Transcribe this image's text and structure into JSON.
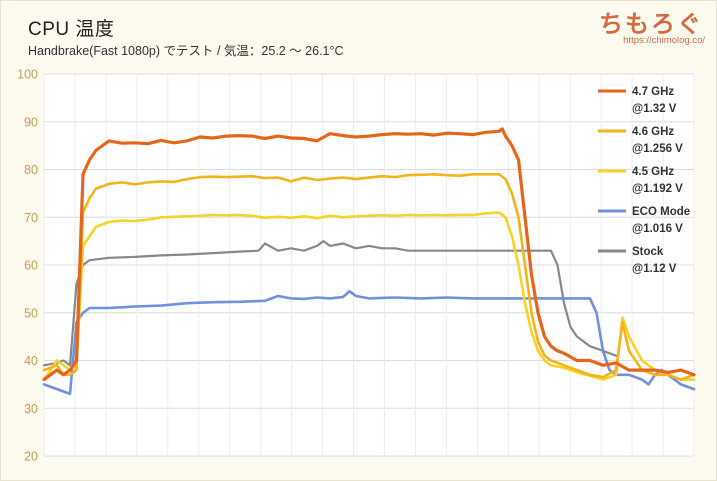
{
  "header": {
    "title": "CPU 温度",
    "subtitle": "Handbrake(Fast 1080p) でテスト  /  気温：25.2 〜 26.1°C",
    "brand": "ちもろぐ",
    "url": "https://chimolog.co/"
  },
  "chart_data": {
    "type": "line",
    "title": "CPU 温度",
    "subtitle": "Handbrake(Fast 1080p) でテスト  /  気温：25.2 〜 26.1°C",
    "ylim": [
      20,
      100
    ],
    "xlim": [
      0,
      100
    ],
    "yticks": [
      20,
      30,
      40,
      50,
      60,
      70,
      80,
      90,
      100
    ],
    "grid": true,
    "legend_position": "right",
    "series": [
      {
        "name": "4.7 GHz @1.32 V",
        "label_lines": [
          "4.7 GHz",
          "@1.32 V"
        ],
        "color": "#e5661b",
        "width": 3.2,
        "points": [
          [
            0,
            36
          ],
          [
            2,
            38
          ],
          [
            3,
            37
          ],
          [
            4,
            38
          ],
          [
            5,
            40
          ],
          [
            6,
            79
          ],
          [
            7,
            82
          ],
          [
            8,
            84
          ],
          [
            9,
            85
          ],
          [
            10,
            86
          ],
          [
            12,
            85.5
          ],
          [
            14,
            85.6
          ],
          [
            16,
            85.4
          ],
          [
            18,
            86.1
          ],
          [
            20,
            85.6
          ],
          [
            22,
            86
          ],
          [
            24,
            86.8
          ],
          [
            26,
            86.6
          ],
          [
            28,
            87
          ],
          [
            30,
            87.1
          ],
          [
            32,
            87
          ],
          [
            34,
            86.5
          ],
          [
            36,
            87
          ],
          [
            38,
            86.6
          ],
          [
            40,
            86.5
          ],
          [
            42,
            86
          ],
          [
            44,
            87.5
          ],
          [
            46,
            87.1
          ],
          [
            48,
            86.8
          ],
          [
            50,
            87
          ],
          [
            52,
            87.3
          ],
          [
            54,
            87.5
          ],
          [
            56,
            87.4
          ],
          [
            58,
            87.5
          ],
          [
            60,
            87.2
          ],
          [
            62,
            87.6
          ],
          [
            64,
            87.5
          ],
          [
            66,
            87.3
          ],
          [
            68,
            87.8
          ],
          [
            70,
            88
          ],
          [
            70.5,
            88.5
          ],
          [
            71,
            87
          ],
          [
            72,
            85
          ],
          [
            73,
            82
          ],
          [
            74,
            70
          ],
          [
            75,
            58
          ],
          [
            76,
            50
          ],
          [
            77,
            45
          ],
          [
            78,
            43
          ],
          [
            79,
            42
          ],
          [
            80,
            41.5
          ],
          [
            82,
            40
          ],
          [
            84,
            40
          ],
          [
            86,
            39
          ],
          [
            88,
            39.5
          ],
          [
            90,
            38
          ],
          [
            92,
            38
          ],
          [
            94,
            38
          ],
          [
            96,
            37.5
          ],
          [
            98,
            38
          ],
          [
            100,
            37
          ]
        ]
      },
      {
        "name": "4.6 GHz @1.256 V",
        "label_lines": [
          "4.6 GHz",
          "@1.256 V"
        ],
        "color": "#f2b31d",
        "width": 2.6,
        "points": [
          [
            0,
            38
          ],
          [
            2,
            39
          ],
          [
            3,
            37
          ],
          [
            4,
            37
          ],
          [
            5,
            38
          ],
          [
            6,
            71
          ],
          [
            7,
            74
          ],
          [
            8,
            76
          ],
          [
            10,
            77
          ],
          [
            12,
            77.3
          ],
          [
            14,
            76.9
          ],
          [
            16,
            77.3
          ],
          [
            18,
            77.5
          ],
          [
            20,
            77.4
          ],
          [
            22,
            78
          ],
          [
            24,
            78.4
          ],
          [
            26,
            78.5
          ],
          [
            28,
            78.4
          ],
          [
            30,
            78.5
          ],
          [
            32,
            78.6
          ],
          [
            34,
            78.2
          ],
          [
            36,
            78.3
          ],
          [
            38,
            77.5
          ],
          [
            40,
            78.3
          ],
          [
            42,
            77.8
          ],
          [
            44,
            78.1
          ],
          [
            46,
            78.3
          ],
          [
            48,
            78
          ],
          [
            50,
            78.3
          ],
          [
            52,
            78.6
          ],
          [
            54,
            78.4
          ],
          [
            56,
            78.8
          ],
          [
            58,
            78.9
          ],
          [
            60,
            79
          ],
          [
            62,
            78.8
          ],
          [
            64,
            78.7
          ],
          [
            66,
            79
          ],
          [
            68,
            79
          ],
          [
            70,
            79
          ],
          [
            71,
            78
          ],
          [
            72,
            75
          ],
          [
            73,
            70
          ],
          [
            74,
            60
          ],
          [
            75,
            50
          ],
          [
            76,
            44
          ],
          [
            77,
            41
          ],
          [
            78,
            40
          ],
          [
            80,
            39
          ],
          [
            82,
            38
          ],
          [
            84,
            37
          ],
          [
            86,
            36.5
          ],
          [
            88,
            38
          ],
          [
            89,
            48
          ],
          [
            90,
            42
          ],
          [
            92,
            38
          ],
          [
            94,
            37
          ],
          [
            96,
            37
          ],
          [
            98,
            36
          ],
          [
            100,
            37
          ]
        ]
      },
      {
        "name": "4.5 GHz @1.192 V",
        "label_lines": [
          "4.5 GHz",
          "@1.192 V"
        ],
        "color": "#f5d32a",
        "width": 2.6,
        "points": [
          [
            0,
            36
          ],
          [
            2,
            40
          ],
          [
            3,
            39
          ],
          [
            4,
            38
          ],
          [
            5,
            39
          ],
          [
            6,
            64
          ],
          [
            7,
            66
          ],
          [
            8,
            68
          ],
          [
            10,
            69
          ],
          [
            12,
            69.3
          ],
          [
            14,
            69.2
          ],
          [
            16,
            69.5
          ],
          [
            18,
            70
          ],
          [
            20,
            70.1
          ],
          [
            22,
            70.2
          ],
          [
            24,
            70.3
          ],
          [
            26,
            70.5
          ],
          [
            28,
            70.4
          ],
          [
            30,
            70.5
          ],
          [
            32,
            70.3
          ],
          [
            34,
            69.9
          ],
          [
            36,
            70.1
          ],
          [
            38,
            69.9
          ],
          [
            40,
            70.2
          ],
          [
            42,
            69.8
          ],
          [
            44,
            70.3
          ],
          [
            46,
            70
          ],
          [
            48,
            70.2
          ],
          [
            50,
            70.3
          ],
          [
            52,
            70.4
          ],
          [
            54,
            70.3
          ],
          [
            56,
            70.5
          ],
          [
            58,
            70.4
          ],
          [
            60,
            70.5
          ],
          [
            62,
            70.4
          ],
          [
            64,
            70.5
          ],
          [
            66,
            70.5
          ],
          [
            68,
            70.8
          ],
          [
            70,
            71
          ],
          [
            71,
            70
          ],
          [
            72,
            66
          ],
          [
            73,
            60
          ],
          [
            74,
            52
          ],
          [
            75,
            46
          ],
          [
            76,
            42
          ],
          [
            77,
            40
          ],
          [
            78,
            39
          ],
          [
            80,
            38.5
          ],
          [
            82,
            37.5
          ],
          [
            84,
            36.8
          ],
          [
            86,
            36
          ],
          [
            88,
            37
          ],
          [
            89,
            49
          ],
          [
            90,
            45
          ],
          [
            92,
            40
          ],
          [
            94,
            38
          ],
          [
            96,
            37
          ],
          [
            98,
            36
          ],
          [
            100,
            36
          ]
        ]
      },
      {
        "name": "ECO Mode @1.016 V",
        "label_lines": [
          "ECO Mode",
          "@1.016 V"
        ],
        "color": "#6f91e0",
        "width": 2.6,
        "points": [
          [
            0,
            35
          ],
          [
            2,
            34
          ],
          [
            3,
            33.5
          ],
          [
            4,
            33
          ],
          [
            5,
            48
          ],
          [
            6,
            50
          ],
          [
            7,
            51
          ],
          [
            10,
            51
          ],
          [
            14,
            51.3
          ],
          [
            18,
            51.5
          ],
          [
            22,
            52
          ],
          [
            26,
            52.2
          ],
          [
            30,
            52.3
          ],
          [
            34,
            52.5
          ],
          [
            36,
            53.5
          ],
          [
            38,
            53
          ],
          [
            40,
            52.9
          ],
          [
            42,
            53.2
          ],
          [
            44,
            53
          ],
          [
            46,
            53.3
          ],
          [
            47,
            54.5
          ],
          [
            48,
            53.5
          ],
          [
            50,
            53
          ],
          [
            54,
            53.2
          ],
          [
            58,
            53
          ],
          [
            62,
            53.2
          ],
          [
            66,
            53
          ],
          [
            70,
            53
          ],
          [
            74,
            53
          ],
          [
            78,
            53
          ],
          [
            82,
            53
          ],
          [
            84,
            53
          ],
          [
            85,
            50
          ],
          [
            86,
            42
          ],
          [
            87,
            38
          ],
          [
            88,
            37
          ],
          [
            90,
            37
          ],
          [
            92,
            36
          ],
          [
            93,
            35
          ],
          [
            94,
            37
          ],
          [
            95,
            38
          ],
          [
            96,
            37
          ],
          [
            98,
            35
          ],
          [
            100,
            34
          ]
        ]
      },
      {
        "name": "Stock @1.12 V",
        "label_lines": [
          "Stock",
          "@1.12 V"
        ],
        "color": "#888888",
        "width": 2.2,
        "points": [
          [
            0,
            39
          ],
          [
            2,
            39.5
          ],
          [
            3,
            40
          ],
          [
            4,
            39
          ],
          [
            5,
            56
          ],
          [
            6,
            60
          ],
          [
            7,
            61
          ],
          [
            10,
            61.5
          ],
          [
            14,
            61.7
          ],
          [
            18,
            62
          ],
          [
            22,
            62.2
          ],
          [
            26,
            62.5
          ],
          [
            30,
            62.8
          ],
          [
            33,
            63
          ],
          [
            34,
            64.5
          ],
          [
            36,
            63
          ],
          [
            38,
            63.5
          ],
          [
            40,
            63
          ],
          [
            42,
            64
          ],
          [
            43,
            65
          ],
          [
            44,
            64
          ],
          [
            46,
            64.5
          ],
          [
            48,
            63.5
          ],
          [
            50,
            64
          ],
          [
            52,
            63.5
          ],
          [
            54,
            63.5
          ],
          [
            56,
            63
          ],
          [
            60,
            63
          ],
          [
            64,
            63
          ],
          [
            68,
            63
          ],
          [
            72,
            63
          ],
          [
            76,
            63
          ],
          [
            78,
            63
          ],
          [
            79,
            60
          ],
          [
            80,
            52
          ],
          [
            81,
            47
          ],
          [
            82,
            45
          ],
          [
            84,
            43
          ],
          [
            86,
            42
          ],
          [
            88,
            41
          ]
        ]
      }
    ]
  }
}
